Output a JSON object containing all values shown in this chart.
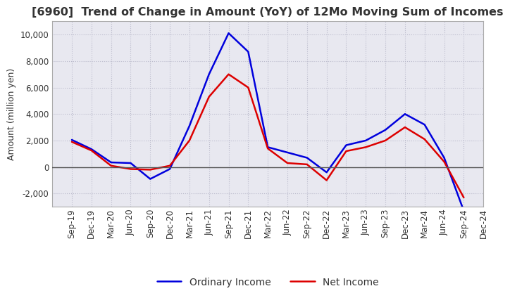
{
  "title": "[6960]  Trend of Change in Amount (YoY) of 12Mo Moving Sum of Incomes",
  "ylabel": "Amount (million yen)",
  "x_labels": [
    "Sep-19",
    "Dec-19",
    "Mar-20",
    "Jun-20",
    "Sep-20",
    "Dec-20",
    "Mar-21",
    "Jun-21",
    "Sep-21",
    "Dec-21",
    "Mar-22",
    "Jun-22",
    "Sep-22",
    "Dec-22",
    "Mar-23",
    "Jun-23",
    "Sep-23",
    "Dec-23",
    "Mar-24",
    "Jun-24",
    "Sep-24",
    "Dec-24"
  ],
  "ordinary_income": [
    2050,
    1350,
    350,
    300,
    -900,
    -150,
    3100,
    7000,
    10100,
    8700,
    1500,
    1100,
    700,
    -400,
    1650,
    2000,
    2800,
    4000,
    3200,
    700,
    -3300,
    null
  ],
  "net_income": [
    1900,
    1250,
    100,
    -150,
    -200,
    100,
    2000,
    5300,
    7000,
    6000,
    1400,
    300,
    200,
    -1000,
    1200,
    1500,
    2000,
    3000,
    2100,
    400,
    -2300,
    null
  ],
  "ordinary_income_color": "#0000dd",
  "net_income_color": "#dd0000",
  "ylim": [
    -3000,
    11000
  ],
  "yticks": [
    -2000,
    0,
    2000,
    4000,
    6000,
    8000,
    10000
  ],
  "plot_bg_color": "#e8e8f0",
  "fig_bg_color": "#ffffff",
  "grid_color": "#bbbbcc",
  "title_color": "#333333",
  "title_fontsize": 11.5,
  "legend_fontsize": 10,
  "axis_label_fontsize": 9,
  "tick_fontsize": 8.5,
  "zero_line_color": "#555555"
}
